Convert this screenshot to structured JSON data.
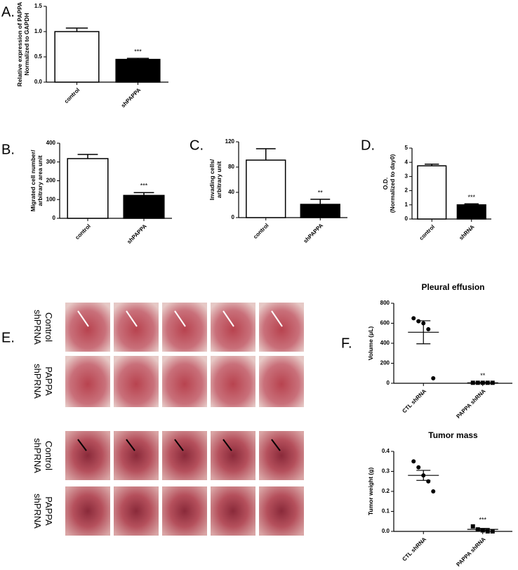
{
  "panel_labels": [
    "A.",
    "B.",
    "C.",
    "D.",
    "E.",
    "F."
  ],
  "photo_panel": {
    "row_labels": [
      [
        "Control",
        "shPRNA"
      ],
      [
        "PAPPA",
        "shPRNA"
      ],
      [
        "Control",
        "shPRNA"
      ],
      [
        "PAPPA",
        "shPRNA"
      ]
    ]
  },
  "chart_data": [
    {
      "type": "bar",
      "ylabel": [
        "Relative expression of PAPPA",
        "Normalized to GAPDH"
      ],
      "categories": [
        "control",
        "shPAPPA"
      ],
      "values": [
        1.0,
        0.45
      ],
      "errors": [
        0.07,
        0.02
      ],
      "colors": [
        "#ffffff",
        "#000000"
      ],
      "significance": {
        "index": 1,
        "label": "***"
      },
      "ylim": [
        0,
        1.5
      ],
      "yticks": [
        {
          "value": 0,
          "label": "0.0"
        },
        {
          "value": 0.5,
          "label": "0.5"
        },
        {
          "value": 1,
          "label": "1.0"
        },
        {
          "value": 1.5,
          "label": "1.5"
        }
      ]
    },
    {
      "type": "bar",
      "ylabel": [
        "Migrated cell number/",
        "arbitrary area unit"
      ],
      "categories": [
        "control",
        "shPAPPA"
      ],
      "values": [
        318,
        122
      ],
      "errors": [
        22,
        15
      ],
      "colors": [
        "#ffffff",
        "#000000"
      ],
      "significance": {
        "index": 1,
        "label": "***"
      },
      "ylim": [
        0,
        400
      ],
      "yticks": [
        0,
        100,
        200,
        300,
        400
      ]
    },
    {
      "type": "bar",
      "ylabel": [
        "Invading cells/",
        "arbitrary unit"
      ],
      "categories": [
        "control",
        "shPAPPA"
      ],
      "values": [
        91,
        21
      ],
      "errors": [
        18,
        8
      ],
      "colors": [
        "#ffffff",
        "#000000"
      ],
      "significance": {
        "index": 1,
        "label": "**"
      },
      "ylim": [
        0,
        120
      ],
      "yticks": [
        0,
        40,
        80,
        120
      ]
    },
    {
      "type": "bar",
      "ylabel": [
        "O.D.",
        "(Normalized to day0)"
      ],
      "categories": [
        "control",
        "shRNA"
      ],
      "values": [
        3.75,
        1.0
      ],
      "errors": [
        0.12,
        0.07
      ],
      "colors": [
        "#ffffff",
        "#000000"
      ],
      "significance": {
        "index": 1,
        "label": "***"
      },
      "ylim": [
        0,
        5
      ],
      "yticks": [
        0,
        1,
        2,
        3,
        4,
        5
      ]
    },
    {
      "type": "dot",
      "title": "Pleural effusion",
      "ylabel": [
        "Volume (μL)"
      ],
      "categories": [
        "CTL shRNA",
        "PAPPA shRNA"
      ],
      "points": [
        [
          650,
          620,
          600,
          540,
          50
        ],
        [
          5,
          5,
          5,
          5,
          5
        ]
      ],
      "means": [
        510,
        5
      ],
      "errors": [
        115,
        3
      ],
      "markers": [
        "circle",
        "square"
      ],
      "significance": {
        "index": 1,
        "label": "**"
      },
      "ylim": [
        0,
        800
      ],
      "yticks": [
        0,
        200,
        400,
        600,
        800
      ]
    },
    {
      "type": "dot",
      "title": "Tumor mass",
      "ylabel": [
        "Tumor weight (g)"
      ],
      "categories": [
        "CTL shRNA",
        "PAPPA shRNA"
      ],
      "points": [
        [
          0.35,
          0.32,
          0.28,
          0.25,
          0.2
        ],
        [
          0.025,
          0.01,
          0.005,
          0.0,
          0.0
        ]
      ],
      "means": [
        0.28,
        0.01
      ],
      "errors": [
        0.025,
        0.005
      ],
      "markers": [
        "circle",
        "square"
      ],
      "significance": {
        "index": 1,
        "label": "***"
      },
      "ylim": [
        0,
        0.4
      ],
      "yticks": [
        {
          "value": 0,
          "label": "0.0"
        },
        {
          "value": 0.1,
          "label": "0.1"
        },
        {
          "value": 0.2,
          "label": "0.2"
        },
        {
          "value": 0.3,
          "label": "0.3"
        },
        {
          "value": 0.4,
          "label": "0.4"
        }
      ]
    }
  ]
}
